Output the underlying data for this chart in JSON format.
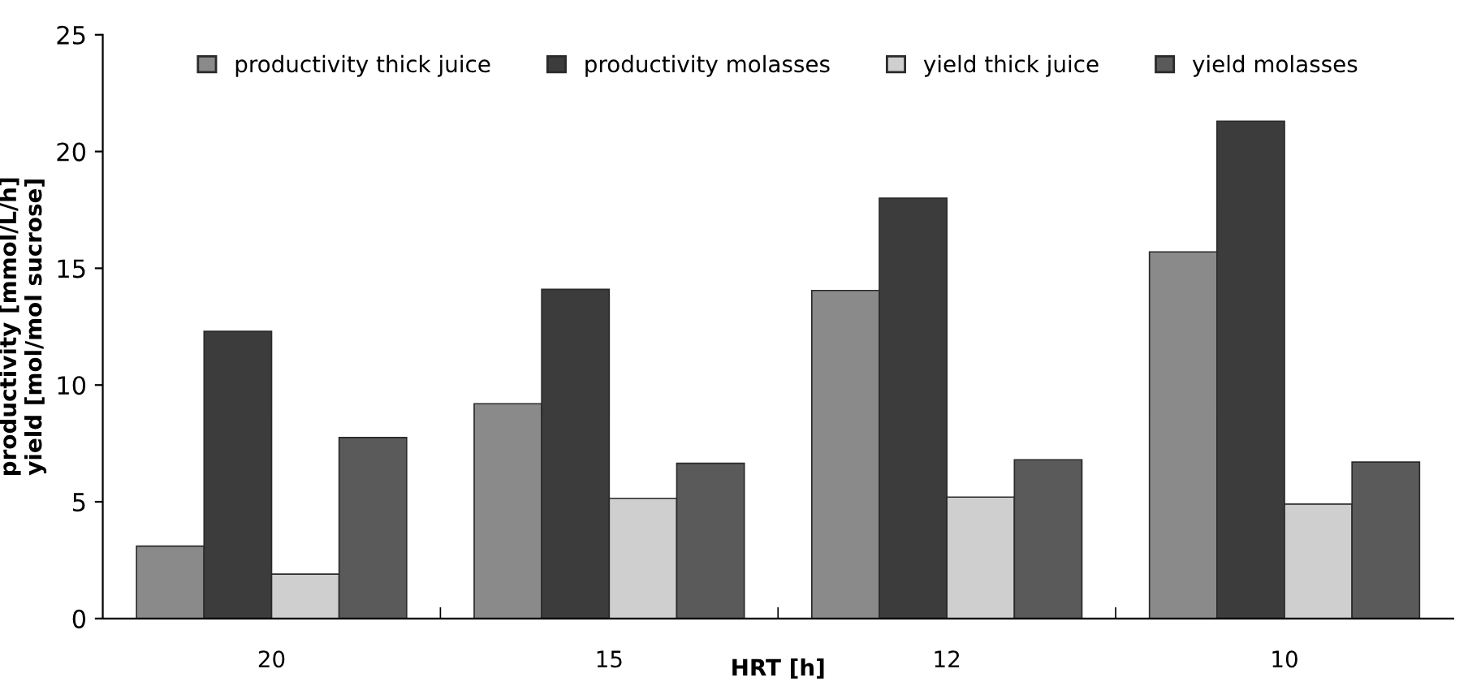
{
  "chart_data": {
    "type": "bar",
    "xlabel": "HRT [h]",
    "ylabel": "productivity [mmol/L/h]\nyield [mol/mol sucrose]",
    "categories": [
      "20",
      "15",
      "12",
      "10"
    ],
    "series": [
      {
        "name": "productivity thick juice",
        "color": "#8a8a8a",
        "values": [
          3.1,
          9.2,
          14.05,
          15.7
        ]
      },
      {
        "name": "productivity molasses",
        "color": "#3c3c3c",
        "values": [
          12.3,
          14.1,
          18.0,
          21.3
        ]
      },
      {
        "name": "yield thick juice",
        "color": "#cfcfcf",
        "values": [
          1.9,
          5.15,
          5.2,
          4.9
        ]
      },
      {
        "name": "yield molasses",
        "color": "#5a5a5a",
        "values": [
          7.75,
          6.65,
          6.8,
          6.7
        ]
      }
    ],
    "ylim": [
      0,
      25
    ],
    "yticks": [
      0,
      5,
      10,
      15,
      20,
      25
    ],
    "grid": false,
    "legend": "top"
  }
}
